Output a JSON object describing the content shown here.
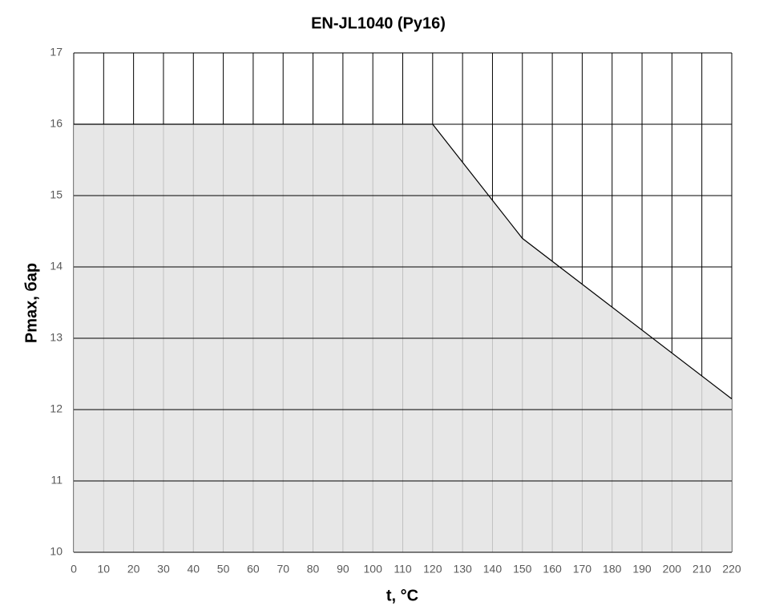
{
  "chart_data": {
    "type": "area",
    "title": "EN-JL1040 (Py16)",
    "x_label": "t, °C",
    "y_label": "Pmax, бар",
    "x": [
      0,
      120,
      150,
      220
    ],
    "values": [
      16,
      16,
      14.4,
      12.15
    ],
    "color": "#000000",
    "fill": "#e3e3e3",
    "xlim": [
      0,
      220
    ],
    "ylim": [
      10,
      17
    ],
    "xticks": [
      0,
      10,
      20,
      30,
      40,
      50,
      60,
      70,
      80,
      90,
      100,
      110,
      120,
      130,
      140,
      150,
      160,
      170,
      180,
      190,
      200,
      210,
      220
    ],
    "yticks": [
      10,
      11,
      12,
      13,
      14,
      15,
      16,
      17
    ],
    "grid": true
  }
}
